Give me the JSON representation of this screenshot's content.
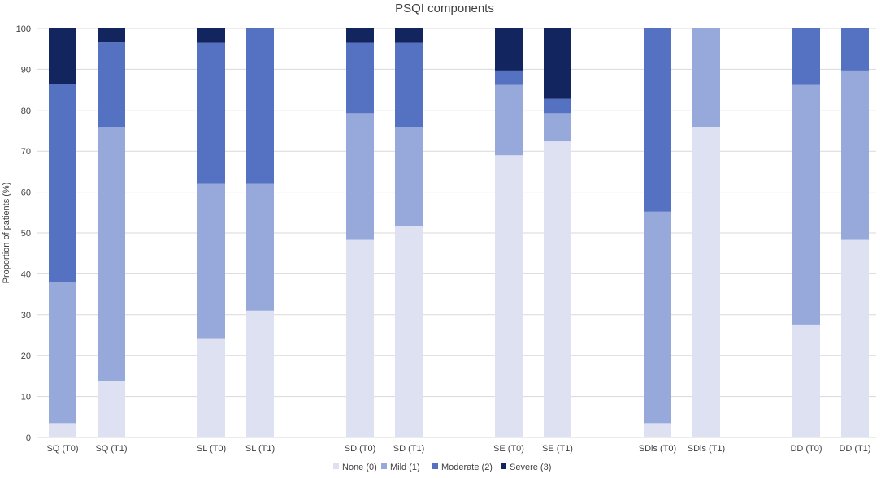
{
  "chart_data": {
    "type": "bar",
    "stacked": true,
    "title": "PSQI components",
    "xlabel": "",
    "ylabel": "Proportion of patients (%)",
    "ylim": [
      0,
      100
    ],
    "yticks": [
      0,
      10,
      20,
      30,
      40,
      50,
      60,
      70,
      80,
      90,
      100
    ],
    "grid": true,
    "legend_position": "bottom",
    "categories": [
      "SQ (T0)",
      "SQ (T1)",
      "SL (T0)",
      "SL (T1)",
      "SD (T0)",
      "SD (T1)",
      "SE (T0)",
      "SE (T1)",
      "SDis (T0)",
      "SDis (T1)",
      "DD (T0)",
      "DD (T1)"
    ],
    "series": [
      {
        "name": "None (0)",
        "color": "#dde1f2",
        "values": [
          3.5,
          13.8,
          24.1,
          31.0,
          48.3,
          51.7,
          69.0,
          72.4,
          3.5,
          75.9,
          27.6,
          48.3
        ]
      },
      {
        "name": "Mild (1)",
        "color": "#97a9da",
        "values": [
          34.5,
          62.1,
          37.9,
          31.0,
          31.0,
          24.1,
          17.2,
          6.9,
          51.7,
          24.1,
          58.6,
          41.4
        ]
      },
      {
        "name": "Moderate (2)",
        "color": "#5571c2",
        "values": [
          48.3,
          20.7,
          34.5,
          38.0,
          17.2,
          20.7,
          3.5,
          3.5,
          44.8,
          0,
          13.8,
          10.3
        ]
      },
      {
        "name": "Severe (3)",
        "color": "#13255e",
        "values": [
          13.7,
          3.4,
          3.5,
          0,
          3.5,
          3.5,
          10.3,
          17.2,
          0,
          0,
          0,
          0
        ]
      }
    ]
  }
}
